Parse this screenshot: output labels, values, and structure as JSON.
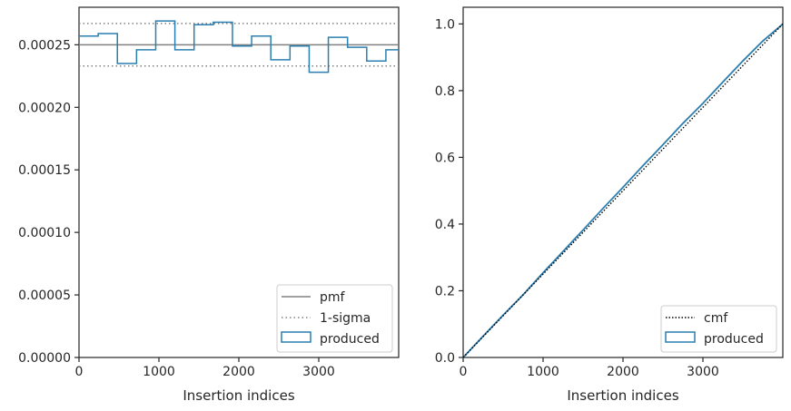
{
  "colors": {
    "produced": "#2a7fb0",
    "pmf": "#808080",
    "sigma": "#808080",
    "cmf": "#000000",
    "axes": "#262626"
  },
  "chart_data": [
    {
      "type": "histogram",
      "xlabel": "Insertion indices",
      "ylabel": "",
      "xlim": [
        0,
        4000
      ],
      "ylim": [
        0,
        0.00028
      ],
      "x_ticks": [
        0,
        1000,
        2000,
        3000
      ],
      "x_tick_labels": [
        "0",
        "1000",
        "2000",
        "3000"
      ],
      "y_ticks": [
        0,
        5e-05,
        0.0001,
        0.00015,
        0.0002,
        0.00025
      ],
      "y_tick_labels": [
        "0.00000",
        "0.00005",
        "0.00010",
        "0.00015",
        "0.00020",
        "0.00025"
      ],
      "grid": false,
      "legend_position": "bottom-right",
      "legend": [
        "pmf",
        "1-sigma",
        "produced"
      ],
      "pmf": 0.00025,
      "sigma_band": [
        0.000233,
        0.000267
      ],
      "bin_edges": [
        0,
        240,
        480,
        720,
        960,
        1200,
        1440,
        1680,
        1920,
        2160,
        2400,
        2640,
        2880,
        3120,
        3360,
        3600,
        3840,
        4000
      ],
      "produced": [
        0.000257,
        0.000259,
        0.000235,
        0.000246,
        0.000269,
        0.000246,
        0.000266,
        0.000268,
        0.000249,
        0.000257,
        0.000238,
        0.000249,
        0.000228,
        0.000256,
        0.000248,
        0.000237,
        0.000246
      ]
    },
    {
      "type": "line",
      "xlabel": "Insertion indices",
      "ylabel": "",
      "xlim": [
        0,
        4000
      ],
      "ylim": [
        0,
        1.05
      ],
      "x_ticks": [
        0,
        1000,
        2000,
        3000
      ],
      "x_tick_labels": [
        "0",
        "1000",
        "2000",
        "3000"
      ],
      "y_ticks": [
        0,
        0.2,
        0.4,
        0.6,
        0.8,
        1.0
      ],
      "y_tick_labels": [
        "0.0",
        "0.2",
        "0.4",
        "0.6",
        "0.8",
        "1.0"
      ],
      "grid": false,
      "legend_position": "bottom-right",
      "legend": [
        "cmf",
        "produced"
      ],
      "cmf": {
        "x": [
          0,
          4000
        ],
        "y": [
          0,
          1.0
        ]
      },
      "produced": {
        "x": [
          0,
          250,
          500,
          750,
          1000,
          1250,
          1500,
          1750,
          2000,
          2250,
          2500,
          2750,
          3000,
          3250,
          3500,
          3750,
          4000
        ],
        "y": [
          0,
          0.064,
          0.127,
          0.188,
          0.254,
          0.318,
          0.382,
          0.447,
          0.51,
          0.575,
          0.638,
          0.702,
          0.762,
          0.826,
          0.889,
          0.949,
          1.0
        ]
      }
    }
  ]
}
